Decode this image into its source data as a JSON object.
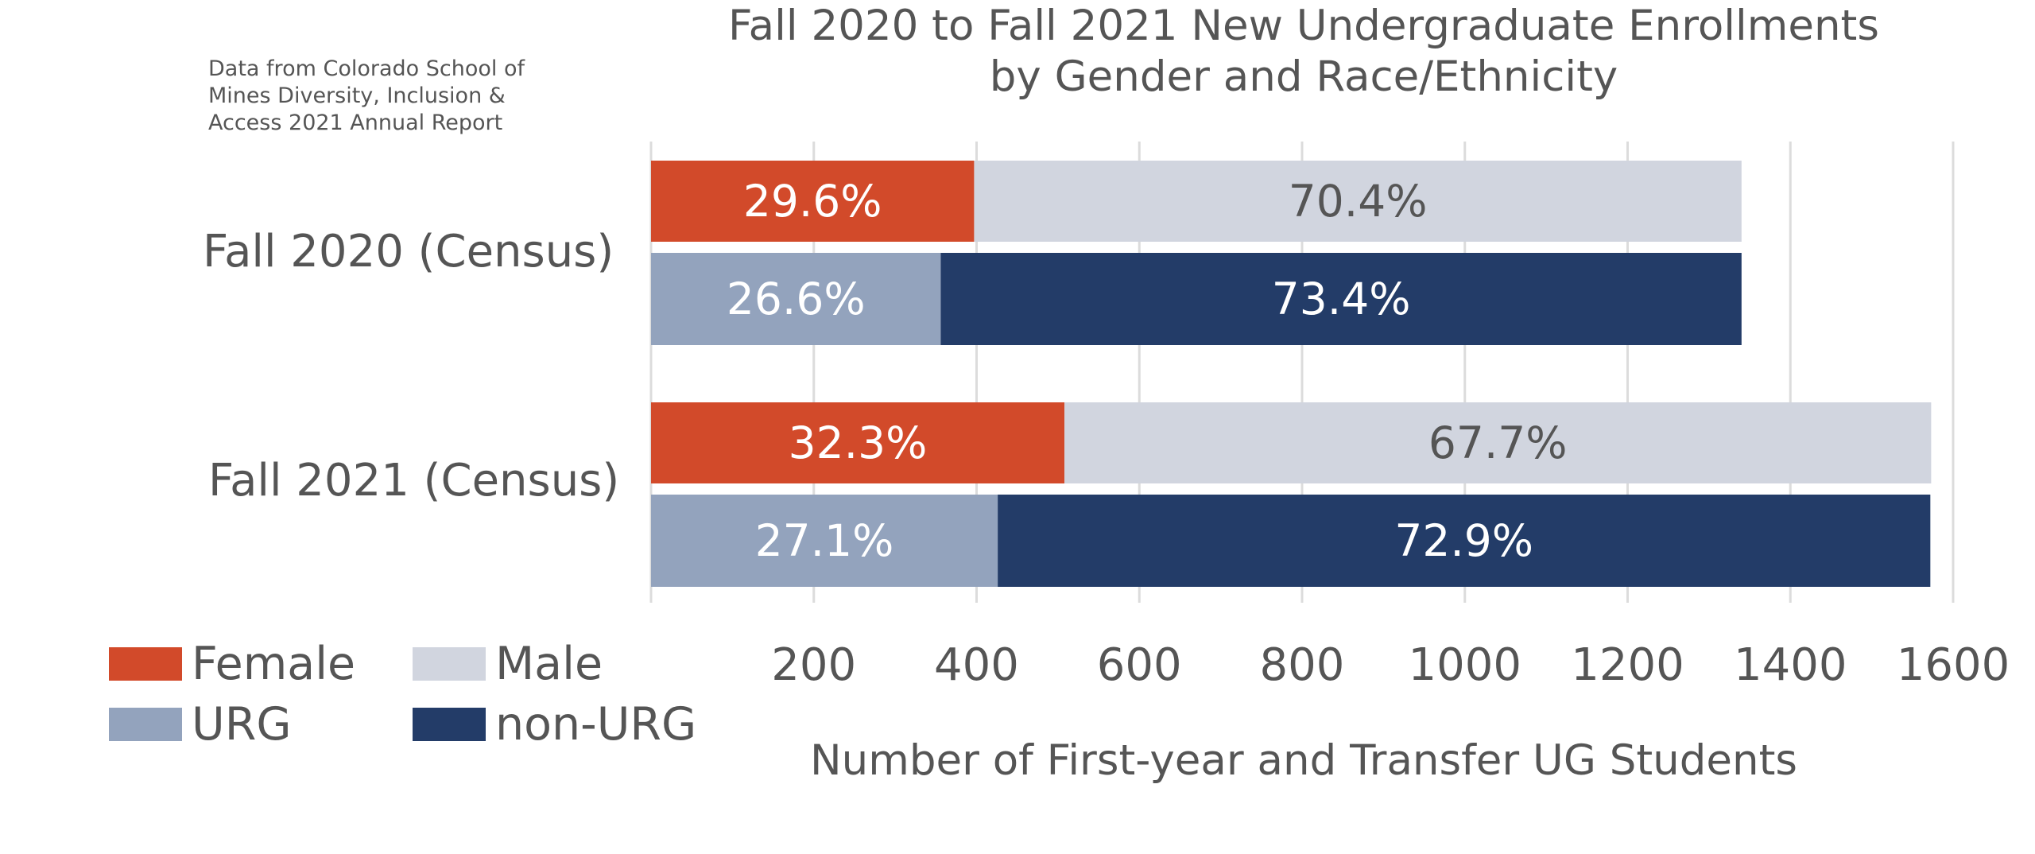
{
  "source_note": "Data from Colorado School of Mines Diversity, Inclusion & Access 2021 Annual Report",
  "chart_data": {
    "type": "bar",
    "orientation": "horizontal",
    "stacked": true,
    "title_line1": "Fall 2020 to Fall 2021 New Undergraduate Enrollments",
    "title_line2": "by Gender and Race/Ethnicity",
    "xlabel": "Number of First-year and Transfer UG Students",
    "ylabel": "",
    "xlim": [
      0,
      1600
    ],
    "xticks": [
      200,
      400,
      600,
      800,
      1000,
      1200,
      1400,
      1600
    ],
    "grid": "vertical",
    "legend_position": "bottom-left",
    "categories": [
      "Fall 2020 (Census)",
      "Fall 2021 (Census)"
    ],
    "groups": [
      {
        "category": "Fall 2020 (Census)",
        "bars": [
          {
            "name": "gender",
            "segments": [
              {
                "series": "Female",
                "value": 397,
                "label": "29.6%"
              },
              {
                "series": "Male",
                "value": 943,
                "label": "70.4%"
              }
            ]
          },
          {
            "name": "race",
            "segments": [
              {
                "series": "URG",
                "value": 356,
                "label": "26.6%"
              },
              {
                "series": "non-URG",
                "value": 984,
                "label": "73.4%"
              }
            ]
          }
        ]
      },
      {
        "category": "Fall 2021 (Census)",
        "bars": [
          {
            "name": "gender",
            "segments": [
              {
                "series": "Female",
                "value": 508,
                "label": "32.3%"
              },
              {
                "series": "Male",
                "value": 1065,
                "label": "67.7%"
              }
            ]
          },
          {
            "name": "race",
            "segments": [
              {
                "series": "URG",
                "value": 426,
                "label": "27.1%"
              },
              {
                "series": "non-URG",
                "value": 1146,
                "label": "72.9%"
              }
            ]
          }
        ]
      }
    ],
    "series": [
      {
        "name": "Female",
        "color": "#d24a2a",
        "label_color": "#ffffff"
      },
      {
        "name": "Male",
        "color": "#d1d5df",
        "label_color": "#555555"
      },
      {
        "name": "URG",
        "color": "#93a3bd",
        "label_color": "#ffffff"
      },
      {
        "name": "non-URG",
        "color": "#233c68",
        "label_color": "#ffffff"
      }
    ]
  }
}
